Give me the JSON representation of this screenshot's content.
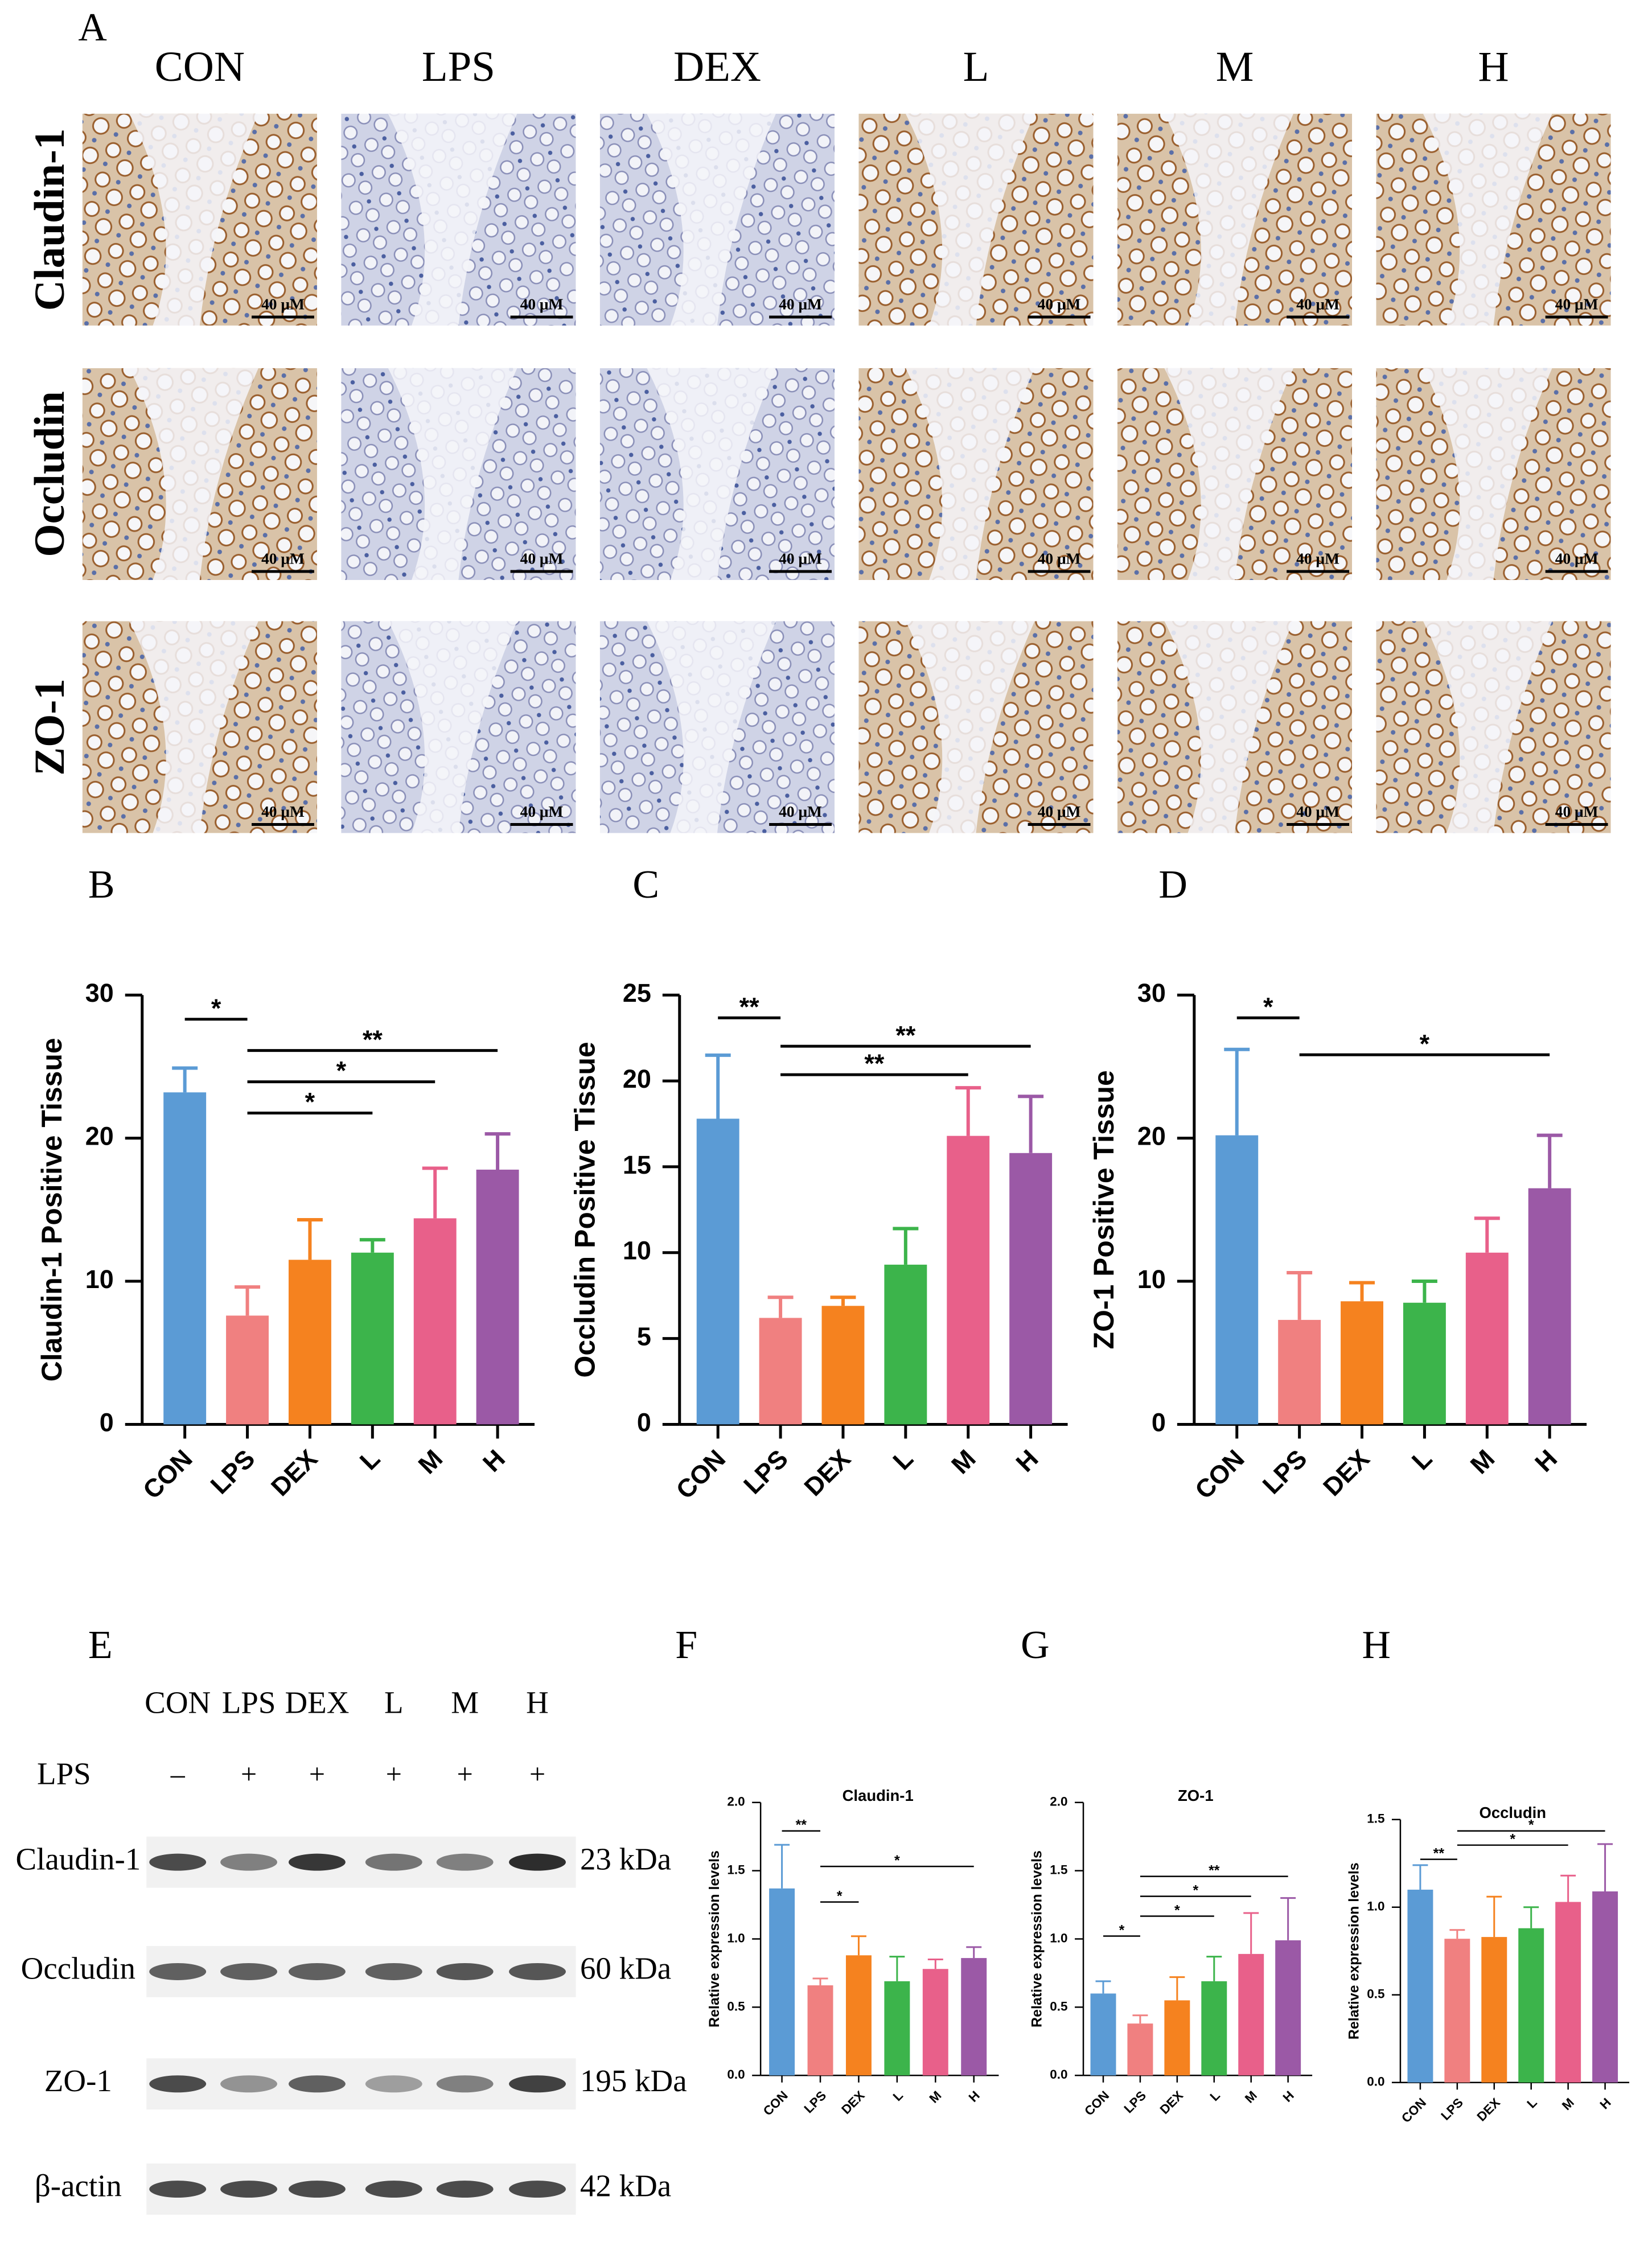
{
  "ihc": {
    "panel": "A",
    "columns": [
      "CON",
      "LPS",
      "DEX",
      "L",
      "M",
      "H"
    ],
    "rows": [
      "Claudin-1",
      "Occludin",
      "ZO-1"
    ],
    "scale_bar": "40 μM"
  },
  "western_blot": {
    "panel": "E",
    "lanes": [
      "CON",
      "LPS",
      "DEX",
      "L",
      "M",
      "H"
    ],
    "treatment_label": "LPS",
    "treatment": [
      "–",
      "+",
      "+",
      "+",
      "+",
      "+"
    ],
    "proteins": [
      {
        "name": "Claudin-1",
        "size": "23 kDa"
      },
      {
        "name": "Occludin",
        "size": "60 kDa"
      },
      {
        "name": "ZO-1",
        "size": "195 kDa"
      },
      {
        "name": "β-actin",
        "size": "42 kDa"
      }
    ]
  },
  "chart_data": [
    {
      "type": "bar",
      "panel": "B",
      "ylabel": "Claudin-1 Positive Tissue",
      "categories": [
        "CON",
        "LPS",
        "DEX",
        "L",
        "M",
        "H"
      ],
      "values": [
        23.2,
        7.6,
        11.5,
        12.0,
        14.4,
        17.8
      ],
      "errors": [
        1.7,
        2.0,
        2.8,
        0.9,
        3.5,
        2.5
      ],
      "colors": [
        "#5b9bd5",
        "#f08080",
        "#f5821f",
        "#3cb44b",
        "#e8608a",
        "#9b59a6"
      ],
      "ylim": [
        0,
        30
      ],
      "yticks": [
        0,
        10,
        20,
        30
      ],
      "comparisons": [
        {
          "groups": [
            "CON",
            "LPS"
          ],
          "label": "*"
        },
        {
          "groups": [
            "LPS",
            "H"
          ],
          "label": "**"
        },
        {
          "groups": [
            "LPS",
            "M"
          ],
          "label": "*"
        },
        {
          "groups": [
            "LPS",
            "L"
          ],
          "label": "*"
        }
      ]
    },
    {
      "type": "bar",
      "panel": "C",
      "ylabel": "Occludin Positive Tissue",
      "categories": [
        "CON",
        "LPS",
        "DEX",
        "L",
        "M",
        "H"
      ],
      "values": [
        17.8,
        6.2,
        6.9,
        9.3,
        16.8,
        15.8
      ],
      "errors": [
        3.7,
        1.2,
        0.5,
        2.1,
        2.8,
        3.3
      ],
      "colors": [
        "#5b9bd5",
        "#f08080",
        "#f5821f",
        "#3cb44b",
        "#e8608a",
        "#9b59a6"
      ],
      "ylim": [
        0,
        25
      ],
      "yticks": [
        0,
        5,
        10,
        15,
        20,
        25
      ],
      "comparisons": [
        {
          "groups": [
            "CON",
            "LPS"
          ],
          "label": "**"
        },
        {
          "groups": [
            "LPS",
            "H"
          ],
          "label": "**"
        },
        {
          "groups": [
            "LPS",
            "M"
          ],
          "label": "**"
        }
      ]
    },
    {
      "type": "bar",
      "panel": "D",
      "ylabel": "ZO-1 Positive Tissue",
      "categories": [
        "CON",
        "LPS",
        "DEX",
        "L",
        "M",
        "H"
      ],
      "values": [
        20.2,
        7.3,
        8.6,
        8.5,
        12.0,
        16.5
      ],
      "errors": [
        6.0,
        3.3,
        1.3,
        1.5,
        2.4,
        3.7
      ],
      "colors": [
        "#5b9bd5",
        "#f08080",
        "#f5821f",
        "#3cb44b",
        "#e8608a",
        "#9b59a6"
      ],
      "ylim": [
        0,
        30
      ],
      "yticks": [
        0,
        10,
        20,
        30
      ],
      "comparisons": [
        {
          "groups": [
            "CON",
            "LPS"
          ],
          "label": "*"
        },
        {
          "groups": [
            "LPS",
            "H"
          ],
          "label": "*"
        }
      ]
    },
    {
      "type": "bar",
      "panel": "F",
      "title": "Claudin-1",
      "ylabel": "Relative expression levels",
      "categories": [
        "CON",
        "LPS",
        "DEX",
        "L",
        "M",
        "H"
      ],
      "values": [
        1.37,
        0.66,
        0.88,
        0.69,
        0.78,
        0.86
      ],
      "errors": [
        0.32,
        0.05,
        0.14,
        0.18,
        0.07,
        0.08
      ],
      "colors": [
        "#5b9bd5",
        "#f08080",
        "#f5821f",
        "#3cb44b",
        "#e8608a",
        "#9b59a6"
      ],
      "ylim": [
        0,
        2
      ],
      "yticks": [
        {
          "value": 0,
          "label": "0.0"
        },
        {
          "value": 0.5,
          "label": "0.5"
        },
        {
          "value": 1,
          "label": "1.0"
        },
        {
          "value": 1.5,
          "label": "1.5"
        },
        {
          "value": 2,
          "label": "2.0"
        }
      ],
      "comparisons": [
        {
          "groups": [
            "CON",
            "LPS"
          ],
          "label": "**"
        },
        {
          "groups": [
            "LPS",
            "H"
          ],
          "label": "*"
        },
        {
          "groups": [
            "LPS",
            "DEX"
          ],
          "label": "*"
        }
      ]
    },
    {
      "type": "bar",
      "panel": "G",
      "title": "ZO-1",
      "ylabel": "Relative expression levels",
      "categories": [
        "CON",
        "LPS",
        "DEX",
        "L",
        "M",
        "H"
      ],
      "values": [
        0.6,
        0.38,
        0.55,
        0.69,
        0.89,
        0.99
      ],
      "errors": [
        0.09,
        0.06,
        0.17,
        0.18,
        0.3,
        0.31
      ],
      "colors": [
        "#5b9bd5",
        "#f08080",
        "#f5821f",
        "#3cb44b",
        "#e8608a",
        "#9b59a6"
      ],
      "ylim": [
        0,
        2
      ],
      "yticks": [
        {
          "value": 0,
          "label": "0.0"
        },
        {
          "value": 0.5,
          "label": "0.5"
        },
        {
          "value": 1,
          "label": "1.0"
        },
        {
          "value": 1.5,
          "label": "1.5"
        },
        {
          "value": 2,
          "label": "2.0"
        }
      ],
      "comparisons": [
        {
          "groups": [
            "LPS",
            "H"
          ],
          "label": "**"
        },
        {
          "groups": [
            "LPS",
            "M"
          ],
          "label": "*"
        },
        {
          "groups": [
            "LPS",
            "L"
          ],
          "label": "*"
        },
        {
          "groups": [
            "CON",
            "LPS"
          ],
          "label": "*"
        }
      ]
    },
    {
      "type": "bar",
      "panel": "H",
      "title": "Occludin",
      "ylabel": "Relative expression levels",
      "categories": [
        "CON",
        "LPS",
        "DEX",
        "L",
        "M",
        "H"
      ],
      "values": [
        1.1,
        0.82,
        0.83,
        0.88,
        1.03,
        1.09
      ],
      "errors": [
        0.14,
        0.05,
        0.23,
        0.12,
        0.15,
        0.27
      ],
      "colors": [
        "#5b9bd5",
        "#f08080",
        "#f5821f",
        "#3cb44b",
        "#e8608a",
        "#9b59a6"
      ],
      "ylim": [
        0,
        1.5
      ],
      "yticks": [
        {
          "value": 0,
          "label": "0.0"
        },
        {
          "value": 0.5,
          "label": "0.5"
        },
        {
          "value": 1,
          "label": "1.0"
        },
        {
          "value": 1.5,
          "label": "1.5"
        }
      ],
      "comparisons": [
        {
          "groups": [
            "LPS",
            "H"
          ],
          "label": "*"
        },
        {
          "groups": [
            "LPS",
            "M"
          ],
          "label": "*"
        },
        {
          "groups": [
            "CON",
            "LPS"
          ],
          "label": "**"
        }
      ]
    }
  ]
}
